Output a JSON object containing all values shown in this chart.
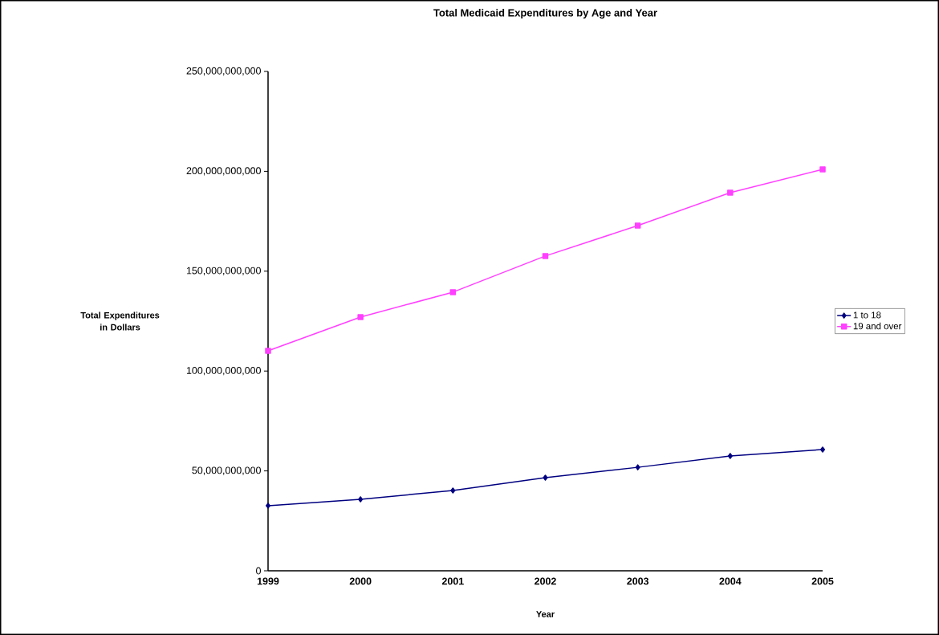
{
  "chart_data": {
    "type": "line",
    "title": "Total Medicaid Expenditures by Age and Year",
    "xlabel": "Year",
    "ylabel": "Total Expenditures in Dollars",
    "categories": [
      "1999",
      "2000",
      "2001",
      "2002",
      "2003",
      "2004",
      "2005"
    ],
    "series": [
      {
        "name": "1 to 18",
        "color": "#000080",
        "marker": "diamond",
        "values": [
          32600000000,
          35800000000,
          40200000000,
          46600000000,
          51800000000,
          57500000000,
          60700000000
        ]
      },
      {
        "name": "19 and over",
        "color": "#ff40ff",
        "marker": "square",
        "values": [
          110100000000,
          127000000000,
          139500000000,
          157600000000,
          172800000000,
          189300000000,
          201000000000
        ]
      }
    ],
    "ylim": [
      0,
      250000000000
    ],
    "yticks": [
      {
        "value": 0,
        "label": "0"
      },
      {
        "value": 50000000000,
        "label": "50,000,000,000"
      },
      {
        "value": 100000000000,
        "label": "100,000,000,000"
      },
      {
        "value": 150000000000,
        "label": "150,000,000,000"
      },
      {
        "value": 200000000000,
        "label": "200,000,000,000"
      },
      {
        "value": 250000000000,
        "label": "250,000,000,000"
      }
    ],
    "legend": "right"
  }
}
